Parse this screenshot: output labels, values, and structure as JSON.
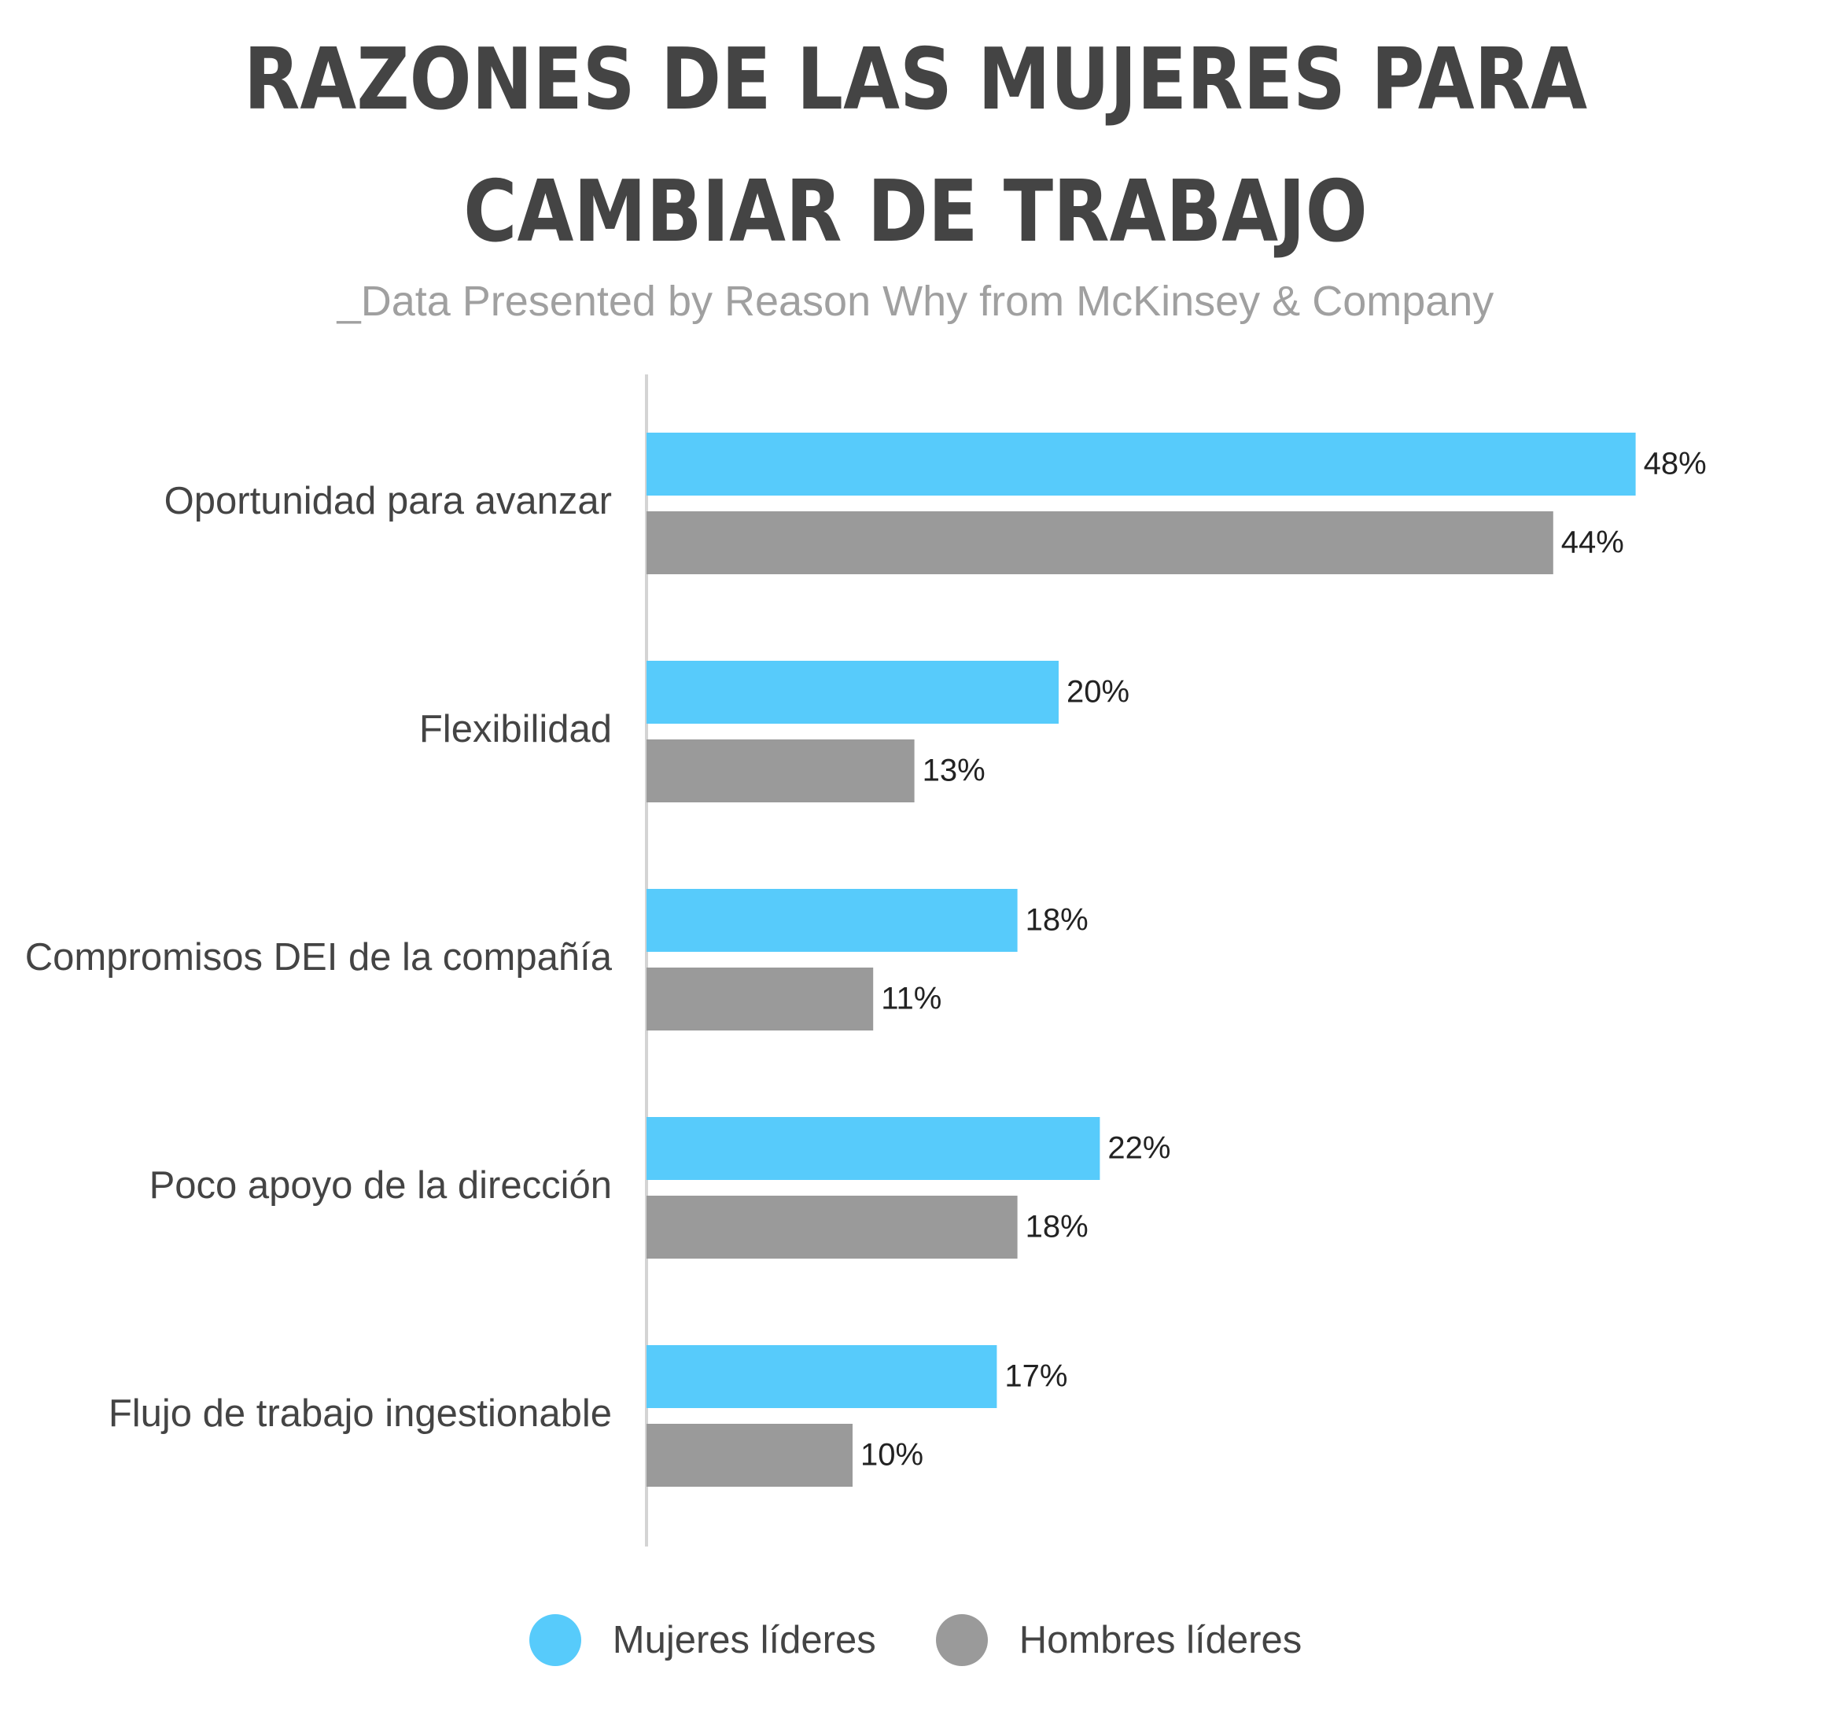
{
  "header": {
    "title_line1": "RAZONES DE LAS MUJERES PARA",
    "title_line2": "CAMBIAR DE TRABAJO",
    "subtitle": "_Data Presented by Reason Why from McKinsey & Company"
  },
  "colors": {
    "women": "#57cbfb",
    "men": "#9a9a9a",
    "axis": "#d4d4d4"
  },
  "chart_data": {
    "type": "bar",
    "orientation": "horizontal",
    "categories": [
      "Oportunidad para avanzar",
      "Flexibilidad",
      "Compromisos DEI de la compañía",
      "Poco apoyo de la dirección",
      "Flujo de trabajo ingestionable"
    ],
    "series": [
      {
        "name": "Mujeres líderes",
        "values": [
          48,
          20,
          18,
          22,
          17
        ],
        "labels": [
          "48%",
          "20%",
          "18%",
          "22%",
          "17%"
        ]
      },
      {
        "name": "Hombres líderes",
        "values": [
          44,
          13,
          11,
          18,
          10
        ],
        "labels": [
          "44%",
          "13%",
          "11%",
          "18%",
          "10%"
        ]
      }
    ],
    "xlim": [
      0,
      50
    ],
    "grid": false,
    "legend_position": "bottom"
  },
  "legend": {
    "women_label": "Mujeres líderes",
    "men_label": "Hombres líderes"
  }
}
